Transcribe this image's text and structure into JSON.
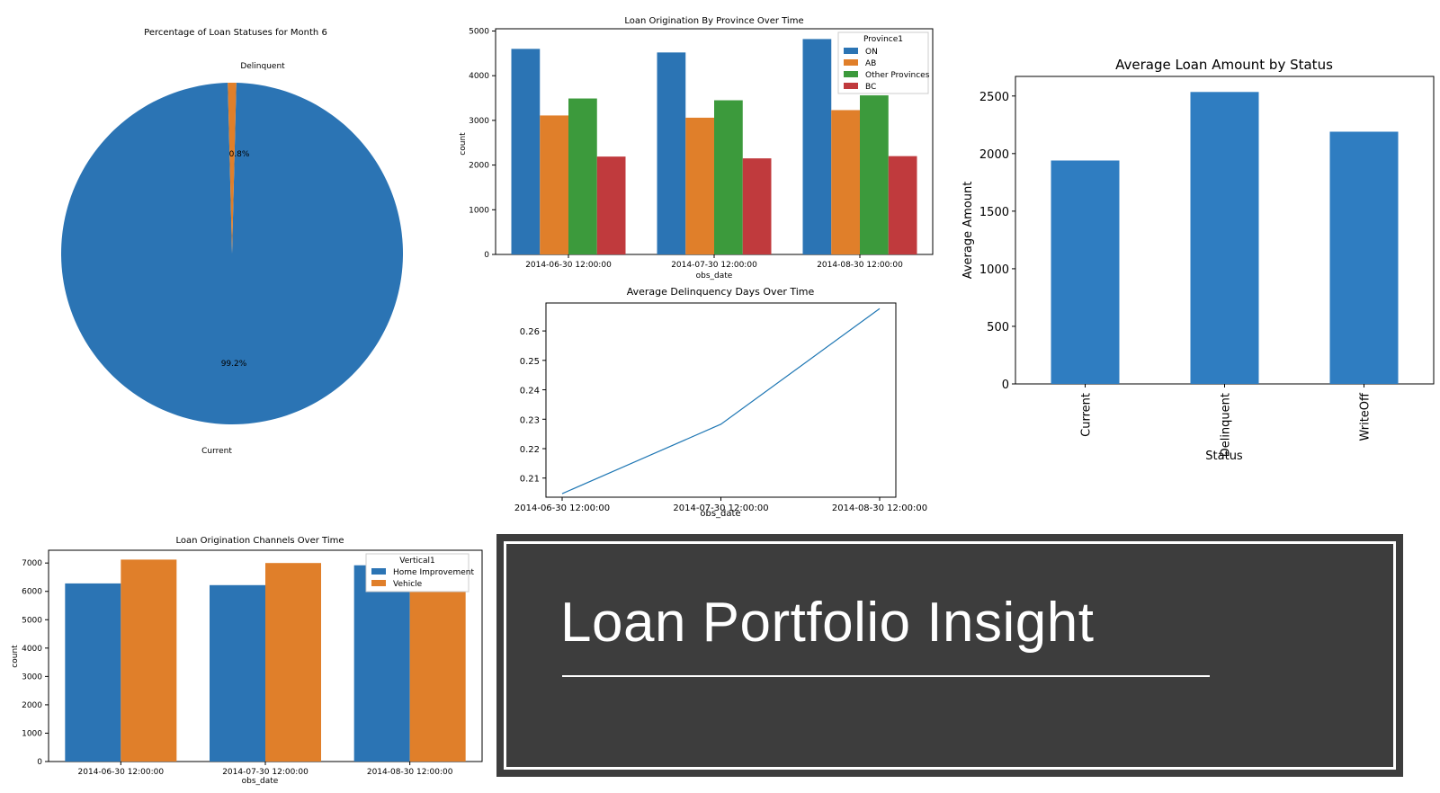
{
  "colors": {
    "blue": "#2b74b4",
    "orange": "#e07f2a",
    "green": "#3c9a3c",
    "red": "#c03a3d",
    "bar_blue": "#2f7dc1",
    "mpl_blue": "#1f77b4",
    "banner_bg": "#3d3d3d"
  },
  "chart_data": [
    {
      "id": "pie",
      "type": "pie",
      "title": "Percentage of Loan Statuses for Month 6",
      "labels": [
        "Current",
        "Delinquent"
      ],
      "values": [
        99.2,
        0.8
      ],
      "value_labels": [
        "99.2%",
        "0.8%"
      ]
    },
    {
      "id": "province",
      "type": "bar",
      "title": "Loan Origination By Province Over Time",
      "xlabel": "obs_date",
      "ylabel": "count",
      "categories": [
        "2014-06-30 12:00:00",
        "2014-07-30 12:00:00",
        "2014-08-30 12:00:00"
      ],
      "ylim": [
        0,
        5050
      ],
      "yticks": [
        0,
        1000,
        2000,
        3000,
        4000,
        5000
      ],
      "legend_title": "Province1",
      "legend_position": "top-right",
      "series": [
        {
          "name": "ON",
          "values": [
            4600,
            4520,
            4820
          ]
        },
        {
          "name": "AB",
          "values": [
            3110,
            3060,
            3230
          ]
        },
        {
          "name": "Other Provinces",
          "values": [
            3490,
            3450,
            3560
          ]
        },
        {
          "name": "BC",
          "values": [
            2190,
            2150,
            2200
          ]
        }
      ]
    },
    {
      "id": "delinquency",
      "type": "line",
      "title": "Average Delinquency Days Over Time",
      "xlabel": "obs_date",
      "ylabel": "",
      "x": [
        "2014-06-30 12:00:00",
        "2014-07-30 12:00:00",
        "2014-08-30 12:00:00"
      ],
      "ylim": [
        0.2035,
        0.2695
      ],
      "yticks": [
        0.21,
        0.22,
        0.23,
        0.24,
        0.25,
        0.26
      ],
      "ytick_labels": [
        "0.21",
        "0.22",
        "0.23",
        "0.24",
        "0.25",
        "0.26"
      ],
      "series": [
        {
          "values": [
            0.2047,
            0.2283,
            0.2676
          ]
        }
      ]
    },
    {
      "id": "status",
      "type": "bar",
      "title": "Average Loan Amount by Status",
      "xlabel": "Status",
      "ylabel": "Average Amount",
      "categories": [
        "Current",
        "Delinquent",
        "WriteOff"
      ],
      "values": [
        1940,
        2535,
        2190
      ],
      "ylim": [
        0,
        2670
      ],
      "yticks": [
        0,
        500,
        1000,
        1500,
        2000,
        2500
      ]
    },
    {
      "id": "channels",
      "type": "bar",
      "title": "Loan Origination Channels Over Time",
      "xlabel": "obs_date",
      "ylabel": "count",
      "categories": [
        "2014-06-30 12:00:00",
        "2014-07-30 12:00:00",
        "2014-08-30 12:00:00"
      ],
      "ylim": [
        0,
        7450
      ],
      "yticks": [
        0,
        1000,
        2000,
        3000,
        4000,
        5000,
        6000,
        7000
      ],
      "legend_title": "Vertical1",
      "legend_position": "top-right",
      "series": [
        {
          "name": "Home Improvement",
          "values": [
            6280,
            6220,
            6920
          ]
        },
        {
          "name": "Vehicle",
          "values": [
            7120,
            7000,
            6900
          ]
        }
      ]
    }
  ],
  "banner": {
    "title": "Loan Portfolio Insight"
  }
}
